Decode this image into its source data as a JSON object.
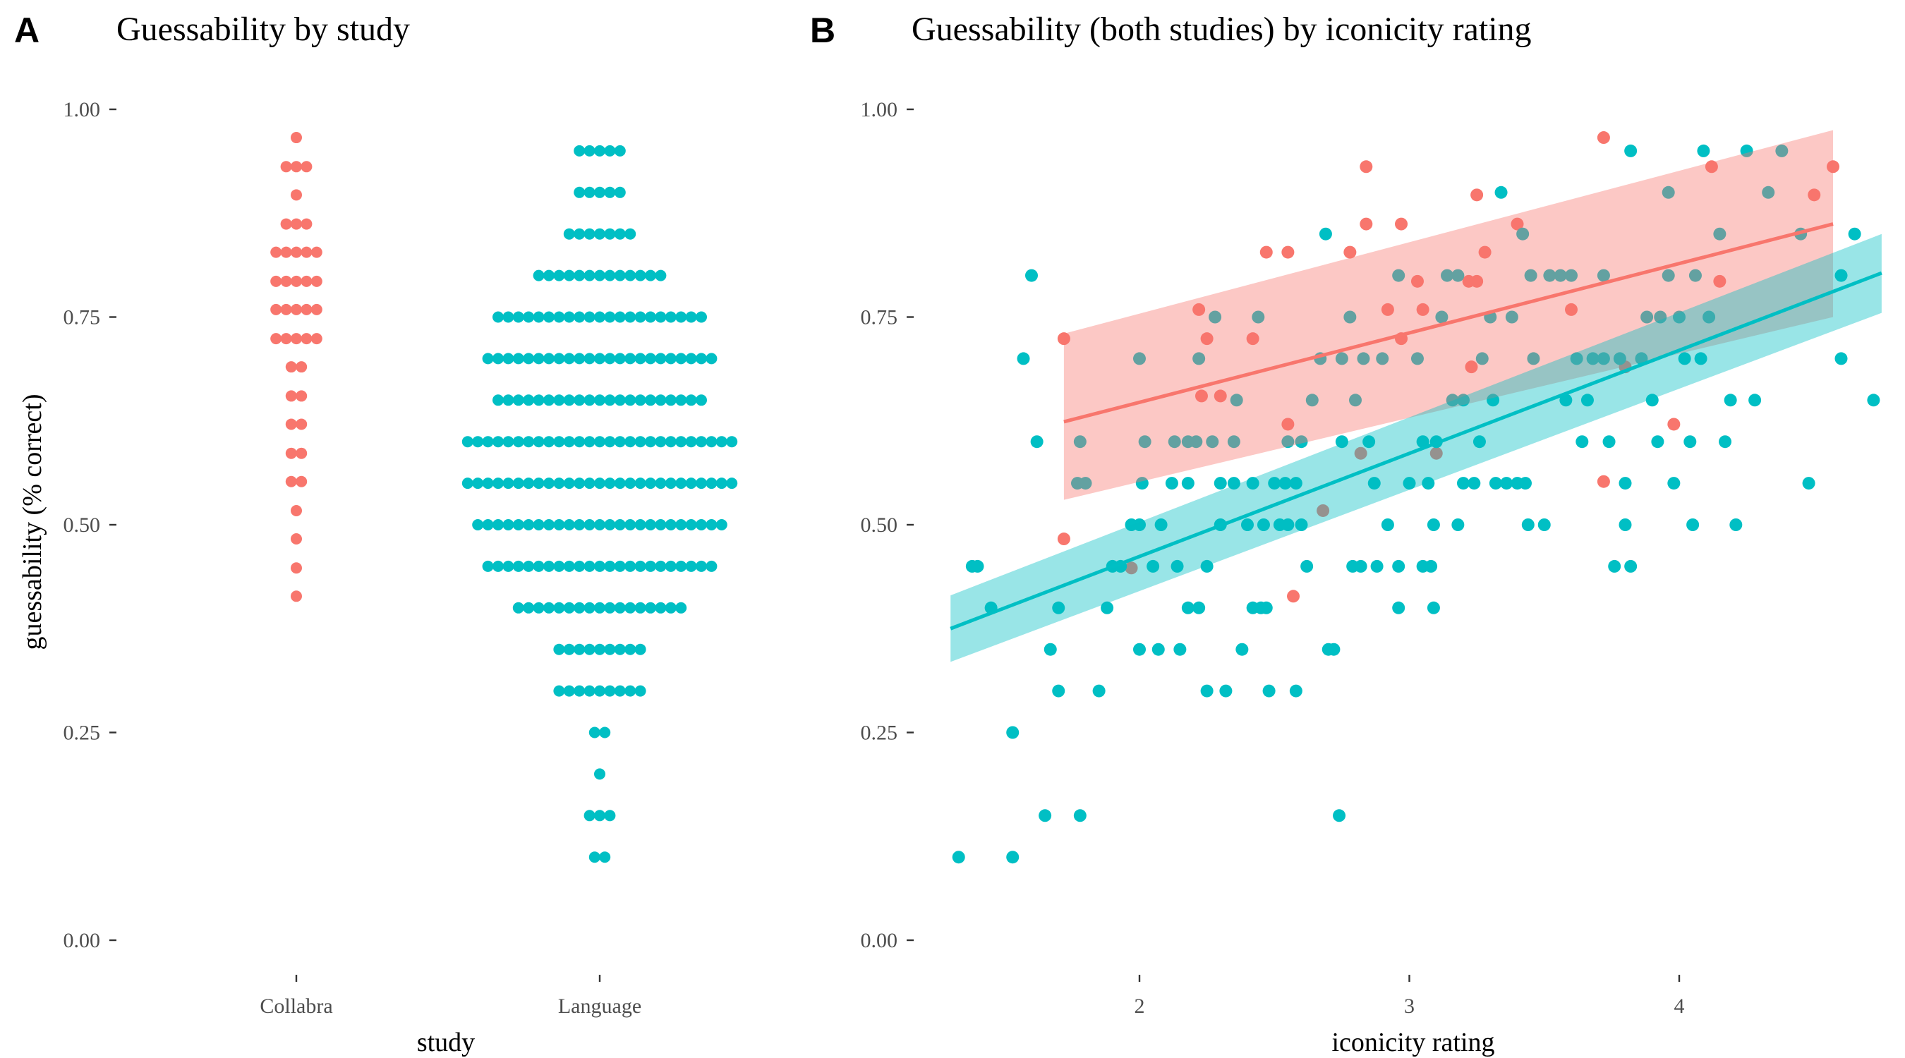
{
  "colors": {
    "collabra": "#F8766D",
    "language": "#00BFC4"
  },
  "chart_data": [
    {
      "type": "dotplot",
      "tag": "A",
      "title": "Guessability by study",
      "xlabel": "study",
      "ylabel": "guessability (% correct)",
      "ylim": [
        0,
        1
      ],
      "yticks": [
        "0.00",
        "0.25",
        "0.50",
        "0.75",
        "1.00"
      ],
      "categories": [
        "Collabra",
        "Language"
      ],
      "series": [
        {
          "category": "Collabra",
          "bins": [
            {
              "y": 0.966,
              "count": 1
            },
            {
              "y": 0.931,
              "count": 3
            },
            {
              "y": 0.897,
              "count": 1
            },
            {
              "y": 0.862,
              "count": 3
            },
            {
              "y": 0.828,
              "count": 5
            },
            {
              "y": 0.793,
              "count": 5
            },
            {
              "y": 0.759,
              "count": 5
            },
            {
              "y": 0.724,
              "count": 5
            },
            {
              "y": 0.69,
              "count": 2
            },
            {
              "y": 0.655,
              "count": 2
            },
            {
              "y": 0.621,
              "count": 2
            },
            {
              "y": 0.586,
              "count": 2
            },
            {
              "y": 0.552,
              "count": 2
            },
            {
              "y": 0.517,
              "count": 1
            },
            {
              "y": 0.483,
              "count": 1
            },
            {
              "y": 0.448,
              "count": 1
            },
            {
              "y": 0.414,
              "count": 1
            }
          ]
        },
        {
          "category": "Language",
          "bins": [
            {
              "y": 0.95,
              "count": 5
            },
            {
              "y": 0.9,
              "count": 5
            },
            {
              "y": 0.85,
              "count": 7
            },
            {
              "y": 0.8,
              "count": 13
            },
            {
              "y": 0.75,
              "count": 21
            },
            {
              "y": 0.7,
              "count": 23
            },
            {
              "y": 0.65,
              "count": 21
            },
            {
              "y": 0.6,
              "count": 27
            },
            {
              "y": 0.55,
              "count": 27
            },
            {
              "y": 0.5,
              "count": 25
            },
            {
              "y": 0.45,
              "count": 23
            },
            {
              "y": 0.4,
              "count": 17
            },
            {
              "y": 0.35,
              "count": 9
            },
            {
              "y": 0.3,
              "count": 9
            },
            {
              "y": 0.25,
              "count": 2
            },
            {
              "y": 0.2,
              "count": 1
            },
            {
              "y": 0.15,
              "count": 3
            },
            {
              "y": 0.1,
              "count": 2
            }
          ]
        }
      ]
    },
    {
      "type": "scatter",
      "tag": "B",
      "title": "Guessability (both studies) by iconicity rating",
      "xlabel": "iconicity rating",
      "ylabel": "",
      "xlim": [
        1.3,
        4.75
      ],
      "ylim": [
        0,
        1
      ],
      "xticks": [
        "2",
        "3",
        "4"
      ],
      "yticks": [
        "0.00",
        "0.25",
        "0.50",
        "0.75",
        "1.00"
      ],
      "series": [
        {
          "study": "Collabra",
          "points": [
            [
              1.72,
              0.724
            ],
            [
              1.72,
              0.483
            ],
            [
              1.97,
              0.448
            ],
            [
              2.22,
              0.759
            ],
            [
              2.25,
              0.724
            ],
            [
              2.23,
              0.655
            ],
            [
              2.3,
              0.655
            ],
            [
              2.42,
              0.724
            ],
            [
              2.47,
              0.828
            ],
            [
              2.55,
              0.828
            ],
            [
              2.55,
              0.621
            ],
            [
              2.57,
              0.414
            ],
            [
              2.68,
              0.517
            ],
            [
              2.78,
              0.828
            ],
            [
              2.84,
              0.931
            ],
            [
              2.84,
              0.862
            ],
            [
              2.82,
              0.586
            ],
            [
              2.92,
              0.759
            ],
            [
              2.97,
              0.862
            ],
            [
              2.97,
              0.724
            ],
            [
              3.03,
              0.793
            ],
            [
              3.05,
              0.759
            ],
            [
              3.1,
              0.586
            ],
            [
              3.22,
              0.793
            ],
            [
              3.25,
              0.793
            ],
            [
              3.25,
              0.897
            ],
            [
              3.23,
              0.69
            ],
            [
              3.28,
              0.828
            ],
            [
              3.4,
              0.862
            ],
            [
              3.6,
              0.759
            ],
            [
              3.72,
              0.966
            ],
            [
              3.72,
              0.552
            ],
            [
              3.8,
              0.69
            ],
            [
              3.98,
              0.621
            ],
            [
              4.12,
              0.931
            ],
            [
              4.15,
              0.793
            ],
            [
              4.57,
              0.931
            ],
            [
              4.5,
              0.897
            ]
          ],
          "fit": {
            "x": [
              1.72,
              4.57
            ],
            "y": [
              0.624,
              0.862
            ],
            "band_lo": [
              0.53,
              0.75
            ],
            "band_hi": [
              0.73,
              0.975
            ]
          }
        },
        {
          "study": "Language",
          "points": [
            [
              1.33,
              0.1
            ],
            [
              1.38,
              0.45
            ],
            [
              1.4,
              0.45
            ],
            [
              1.45,
              0.4
            ],
            [
              1.53,
              0.25
            ],
            [
              1.53,
              0.1
            ],
            [
              1.57,
              0.7
            ],
            [
              1.6,
              0.8
            ],
            [
              1.62,
              0.6
            ],
            [
              1.65,
              0.15
            ],
            [
              1.67,
              0.35
            ],
            [
              1.7,
              0.3
            ],
            [
              1.7,
              0.4
            ],
            [
              1.77,
              0.55
            ],
            [
              1.8,
              0.55
            ],
            [
              1.78,
              0.6
            ],
            [
              1.78,
              0.15
            ],
            [
              1.85,
              0.3
            ],
            [
              1.88,
              0.4
            ],
            [
              1.9,
              0.45
            ],
            [
              1.93,
              0.45
            ],
            [
              1.97,
              0.5
            ],
            [
              2.0,
              0.5
            ],
            [
              2.0,
              0.7
            ],
            [
              2.01,
              0.55
            ],
            [
              2.02,
              0.6
            ],
            [
              2.05,
              0.45
            ],
            [
              2.0,
              0.35
            ],
            [
              2.07,
              0.35
            ],
            [
              2.08,
              0.5
            ],
            [
              2.12,
              0.55
            ],
            [
              2.13,
              0.6
            ],
            [
              2.14,
              0.45
            ],
            [
              2.15,
              0.35
            ],
            [
              2.18,
              0.6
            ],
            [
              2.18,
              0.55
            ],
            [
              2.18,
              0.4
            ],
            [
              2.21,
              0.6
            ],
            [
              2.22,
              0.7
            ],
            [
              2.22,
              0.4
            ],
            [
              2.25,
              0.45
            ],
            [
              2.27,
              0.6
            ],
            [
              2.28,
              0.75
            ],
            [
              2.25,
              0.3
            ],
            [
              2.3,
              0.5
            ],
            [
              2.3,
              0.55
            ],
            [
              2.32,
              0.3
            ],
            [
              2.35,
              0.55
            ],
            [
              2.35,
              0.6
            ],
            [
              2.36,
              0.65
            ],
            [
              2.38,
              0.35
            ],
            [
              2.4,
              0.5
            ],
            [
              2.42,
              0.4
            ],
            [
              2.42,
              0.55
            ],
            [
              2.44,
              0.75
            ],
            [
              2.45,
              0.4
            ],
            [
              2.46,
              0.5
            ],
            [
              2.47,
              0.4
            ],
            [
              2.48,
              0.3
            ],
            [
              2.5,
              0.55
            ],
            [
              2.52,
              0.5
            ],
            [
              2.54,
              0.55
            ],
            [
              2.55,
              0.5
            ],
            [
              2.55,
              0.6
            ],
            [
              2.58,
              0.55
            ],
            [
              2.58,
              0.3
            ],
            [
              2.6,
              0.5
            ],
            [
              2.6,
              0.6
            ],
            [
              2.62,
              0.45
            ],
            [
              2.64,
              0.65
            ],
            [
              2.67,
              0.7
            ],
            [
              2.69,
              0.85
            ],
            [
              2.7,
              0.35
            ],
            [
              2.72,
              0.35
            ],
            [
              2.74,
              0.15
            ],
            [
              2.75,
              0.7
            ],
            [
              2.75,
              0.6
            ],
            [
              2.78,
              0.75
            ],
            [
              2.79,
              0.45
            ],
            [
              2.8,
              0.65
            ],
            [
              2.82,
              0.45
            ],
            [
              2.83,
              0.7
            ],
            [
              2.85,
              0.6
            ],
            [
              2.87,
              0.55
            ],
            [
              2.88,
              0.45
            ],
            [
              2.9,
              0.7
            ],
            [
              2.92,
              0.5
            ],
            [
              2.96,
              0.8
            ],
            [
              2.96,
              0.45
            ],
            [
              2.96,
              0.4
            ],
            [
              3.0,
              0.55
            ],
            [
              3.03,
              0.7
            ],
            [
              3.05,
              0.45
            ],
            [
              3.05,
              0.6
            ],
            [
              3.07,
              0.55
            ],
            [
              3.08,
              0.45
            ],
            [
              3.09,
              0.5
            ],
            [
              3.09,
              0.4
            ],
            [
              3.1,
              0.6
            ],
            [
              3.12,
              0.75
            ],
            [
              3.14,
              0.8
            ],
            [
              3.16,
              0.65
            ],
            [
              3.18,
              0.5
            ],
            [
              3.2,
              0.65
            ],
            [
              3.2,
              0.55
            ],
            [
              3.24,
              0.55
            ],
            [
              3.26,
              0.6
            ],
            [
              3.27,
              0.7
            ],
            [
              3.3,
              0.75
            ],
            [
              3.31,
              0.65
            ],
            [
              3.32,
              0.55
            ],
            [
              3.34,
              0.9
            ],
            [
              3.36,
              0.55
            ],
            [
              3.38,
              0.75
            ],
            [
              3.4,
              0.55
            ],
            [
              3.42,
              0.85
            ],
            [
              3.43,
              0.55
            ],
            [
              3.44,
              0.5
            ],
            [
              3.45,
              0.8
            ],
            [
              3.46,
              0.7
            ],
            [
              3.5,
              0.5
            ],
            [
              3.52,
              0.8
            ],
            [
              3.56,
              0.8
            ],
            [
              3.58,
              0.65
            ],
            [
              3.6,
              0.8
            ],
            [
              3.62,
              0.7
            ],
            [
              3.64,
              0.6
            ],
            [
              3.66,
              0.65
            ],
            [
              3.68,
              0.7
            ],
            [
              3.72,
              0.7
            ],
            [
              3.74,
              0.6
            ],
            [
              3.76,
              0.45
            ],
            [
              3.78,
              0.7
            ],
            [
              3.8,
              0.55
            ],
            [
              3.82,
              0.45
            ],
            [
              3.82,
              0.95
            ],
            [
              3.86,
              0.7
            ],
            [
              3.88,
              0.75
            ],
            [
              3.9,
              0.65
            ],
            [
              3.92,
              0.6
            ],
            [
              3.93,
              0.75
            ],
            [
              3.96,
              0.8
            ],
            [
              3.96,
              0.9
            ],
            [
              3.98,
              0.55
            ],
            [
              4.0,
              0.75
            ],
            [
              4.02,
              0.7
            ],
            [
              4.04,
              0.6
            ],
            [
              4.05,
              0.5
            ],
            [
              4.06,
              0.8
            ],
            [
              4.08,
              0.7
            ],
            [
              4.09,
              0.95
            ],
            [
              4.11,
              0.75
            ],
            [
              4.15,
              0.85
            ],
            [
              4.17,
              0.6
            ],
            [
              4.19,
              0.65
            ],
            [
              4.21,
              0.5
            ],
            [
              4.25,
              0.95
            ],
            [
              4.28,
              0.65
            ],
            [
              4.33,
              0.9
            ],
            [
              4.38,
              0.95
            ],
            [
              4.45,
              0.85
            ],
            [
              4.48,
              0.55
            ],
            [
              4.6,
              0.8
            ],
            [
              4.65,
              0.85
            ],
            [
              4.72,
              0.65
            ],
            [
              4.6,
              0.7
            ],
            [
              3.8,
              0.5
            ],
            [
              3.18,
              0.8
            ],
            [
              3.72,
              0.8
            ]
          ],
          "fit": {
            "x": [
              1.3,
              4.75
            ],
            "y": [
              0.375,
              0.803
            ],
            "band_lo": [
              0.335,
              0.755
            ],
            "band_hi": [
              0.415,
              0.85
            ]
          }
        }
      ]
    }
  ]
}
